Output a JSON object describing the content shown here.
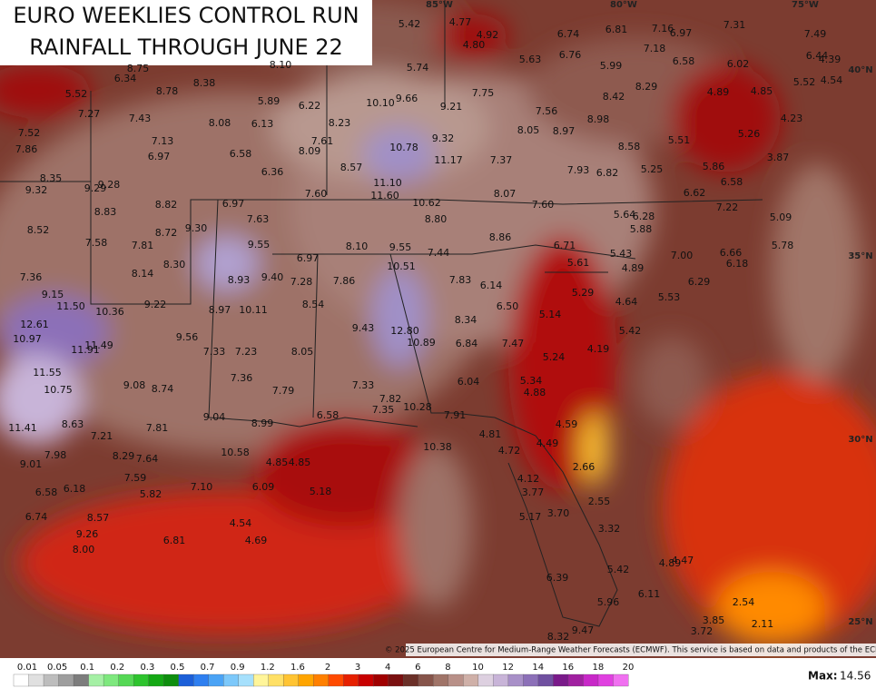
{
  "header": {
    "title_line1": "EURO WEEKLIES CONTROL RUN",
    "title_line2": "RAINFALL THROUGH JUNE 22"
  },
  "geo_labels": [
    "85°W",
    "80°W",
    "75°W",
    "40°N",
    "35°N",
    "30°N",
    "25°N"
  ],
  "map_labels": [
    "5.42",
    "4.77",
    "4.92",
    "4.80",
    "6.74",
    "6.81",
    "7.16",
    "6.97",
    "7.31",
    "7.49",
    "6.44",
    "4.39",
    "4.54",
    "5.52",
    "6.02",
    "6.58",
    "7.18",
    "5.99",
    "6.76",
    "5.63",
    "5.74",
    "8.75",
    "8.10",
    "6.34",
    "8.78",
    "8.38",
    "5.52",
    "7.27",
    "7.43",
    "8.08",
    "5.89",
    "6.22",
    "6.13",
    "10.10",
    "9.66",
    "9.21",
    "7.75",
    "8.42",
    "8.29",
    "4.89",
    "4.85",
    "4.23",
    "7.56",
    "8.23",
    "8.98",
    "8.05",
    "8.97",
    "7.52",
    "7.86",
    "7.13",
    "6.97",
    "6.58",
    "7.61",
    "8.09",
    "10.78",
    "9.32",
    "5.51",
    "5.26",
    "8.58",
    "11.17",
    "7.37",
    "3.87",
    "8.57",
    "6.36",
    "8.35",
    "9.32",
    "9.29",
    "9.28",
    "7.93",
    "6.82",
    "5.25",
    "5.86",
    "11.10",
    "6.58",
    "11.60",
    "7.60",
    "8.07",
    "10.62",
    "6.62",
    "6.97",
    "8.82",
    "8.83",
    "7.60",
    "7.22",
    "5.64",
    "6.28",
    "5.09",
    "7.63",
    "8.80",
    "9.30",
    "5.88",
    "8.52",
    "8.72",
    "8.86",
    "8.10",
    "9.55",
    "7.44",
    "9.55",
    "7.58",
    "7.81",
    "6.71",
    "5.43",
    "7.00",
    "6.66",
    "5.78",
    "6.97",
    "8.30",
    "5.61",
    "6.18",
    "10.51",
    "4.89",
    "8.14",
    "7.36",
    "8.93",
    "9.40",
    "7.28",
    "7.86",
    "7.83",
    "6.14",
    "6.29",
    "5.29",
    "9.15",
    "11.50",
    "9.22",
    "10.36",
    "8.54",
    "8.97",
    "10.11",
    "4.64",
    "5.53",
    "6.50",
    "12.61",
    "8.34",
    "5.14",
    "10.97",
    "9.43",
    "12.80",
    "9.56",
    "11.91",
    "11.49",
    "10.89",
    "5.42",
    "6.84",
    "7.47",
    "4.19",
    "7.33",
    "7.23",
    "8.05",
    "5.24",
    "11.55",
    "7.36",
    "5.34",
    "6.04",
    "9.08",
    "8.74",
    "10.75",
    "7.79",
    "7.33",
    "4.88",
    "7.82",
    "7.35",
    "10.28",
    "6.58",
    "7.91",
    "9.04",
    "11.41",
    "8.63",
    "7.81",
    "8.99",
    "4.59",
    "7.21",
    "4.81",
    "4.49",
    "10.38",
    "4.72",
    "7.98",
    "8.29",
    "7.64",
    "10.58",
    "4.85",
    "4.85",
    "2.66",
    "9.01",
    "7.59",
    "4.12",
    "7.10",
    "6.09",
    "6.58",
    "6.18",
    "5.82",
    "5.18",
    "3.77",
    "2.55",
    "3.70",
    "5.17",
    "8.57",
    "6.74",
    "4.54",
    "3.32",
    "9.26",
    "6.81",
    "4.69",
    "8.00",
    "4.89",
    "4.47",
    "5.42",
    "6.39",
    "6.11",
    "5.96",
    "2.54",
    "3.85",
    "2.11",
    "3.72",
    "9.47",
    "8.32"
  ],
  "copyright": "© 2025 European Centre for Medium-Range Weather Forecasts (ECMWF). This service is based on data and products of the ECMWF.",
  "legend": {
    "labels": [
      "0.01",
      "0.05",
      "0.1",
      "0.2",
      "0.3",
      "0.5",
      "0.7",
      "0.9",
      "1.2",
      "1.6",
      "2",
      "3",
      "4",
      "6",
      "8",
      "10",
      "12",
      "14",
      "16",
      "18",
      "20"
    ],
    "colors": [
      "#ffffff",
      "#e0e0e0",
      "#bdbdbd",
      "#9e9e9e",
      "#7d7d7d",
      "#a5f0a5",
      "#7ee87e",
      "#55d855",
      "#2ec42e",
      "#15a815",
      "#0e8e0e",
      "#1c5fd8",
      "#2e7ff0",
      "#4aa3f5",
      "#7cc8fa",
      "#a6e0fc",
      "#fff59a",
      "#ffe066",
      "#ffc433",
      "#ffa500",
      "#ff8000",
      "#ff4a00",
      "#e62000",
      "#c80000",
      "#a00000",
      "#7a1010",
      "#6b3028",
      "#86544a",
      "#a07468",
      "#b89088",
      "#cfb0a8",
      "#ddd0e0",
      "#c8b4d8",
      "#a890c8",
      "#8c70b8",
      "#7050a0",
      "#7a1a8a",
      "#a020a0",
      "#c828c8",
      "#e040e0",
      "#f070f0"
    ]
  },
  "max_label": "Max:",
  "max_value": "14.56"
}
